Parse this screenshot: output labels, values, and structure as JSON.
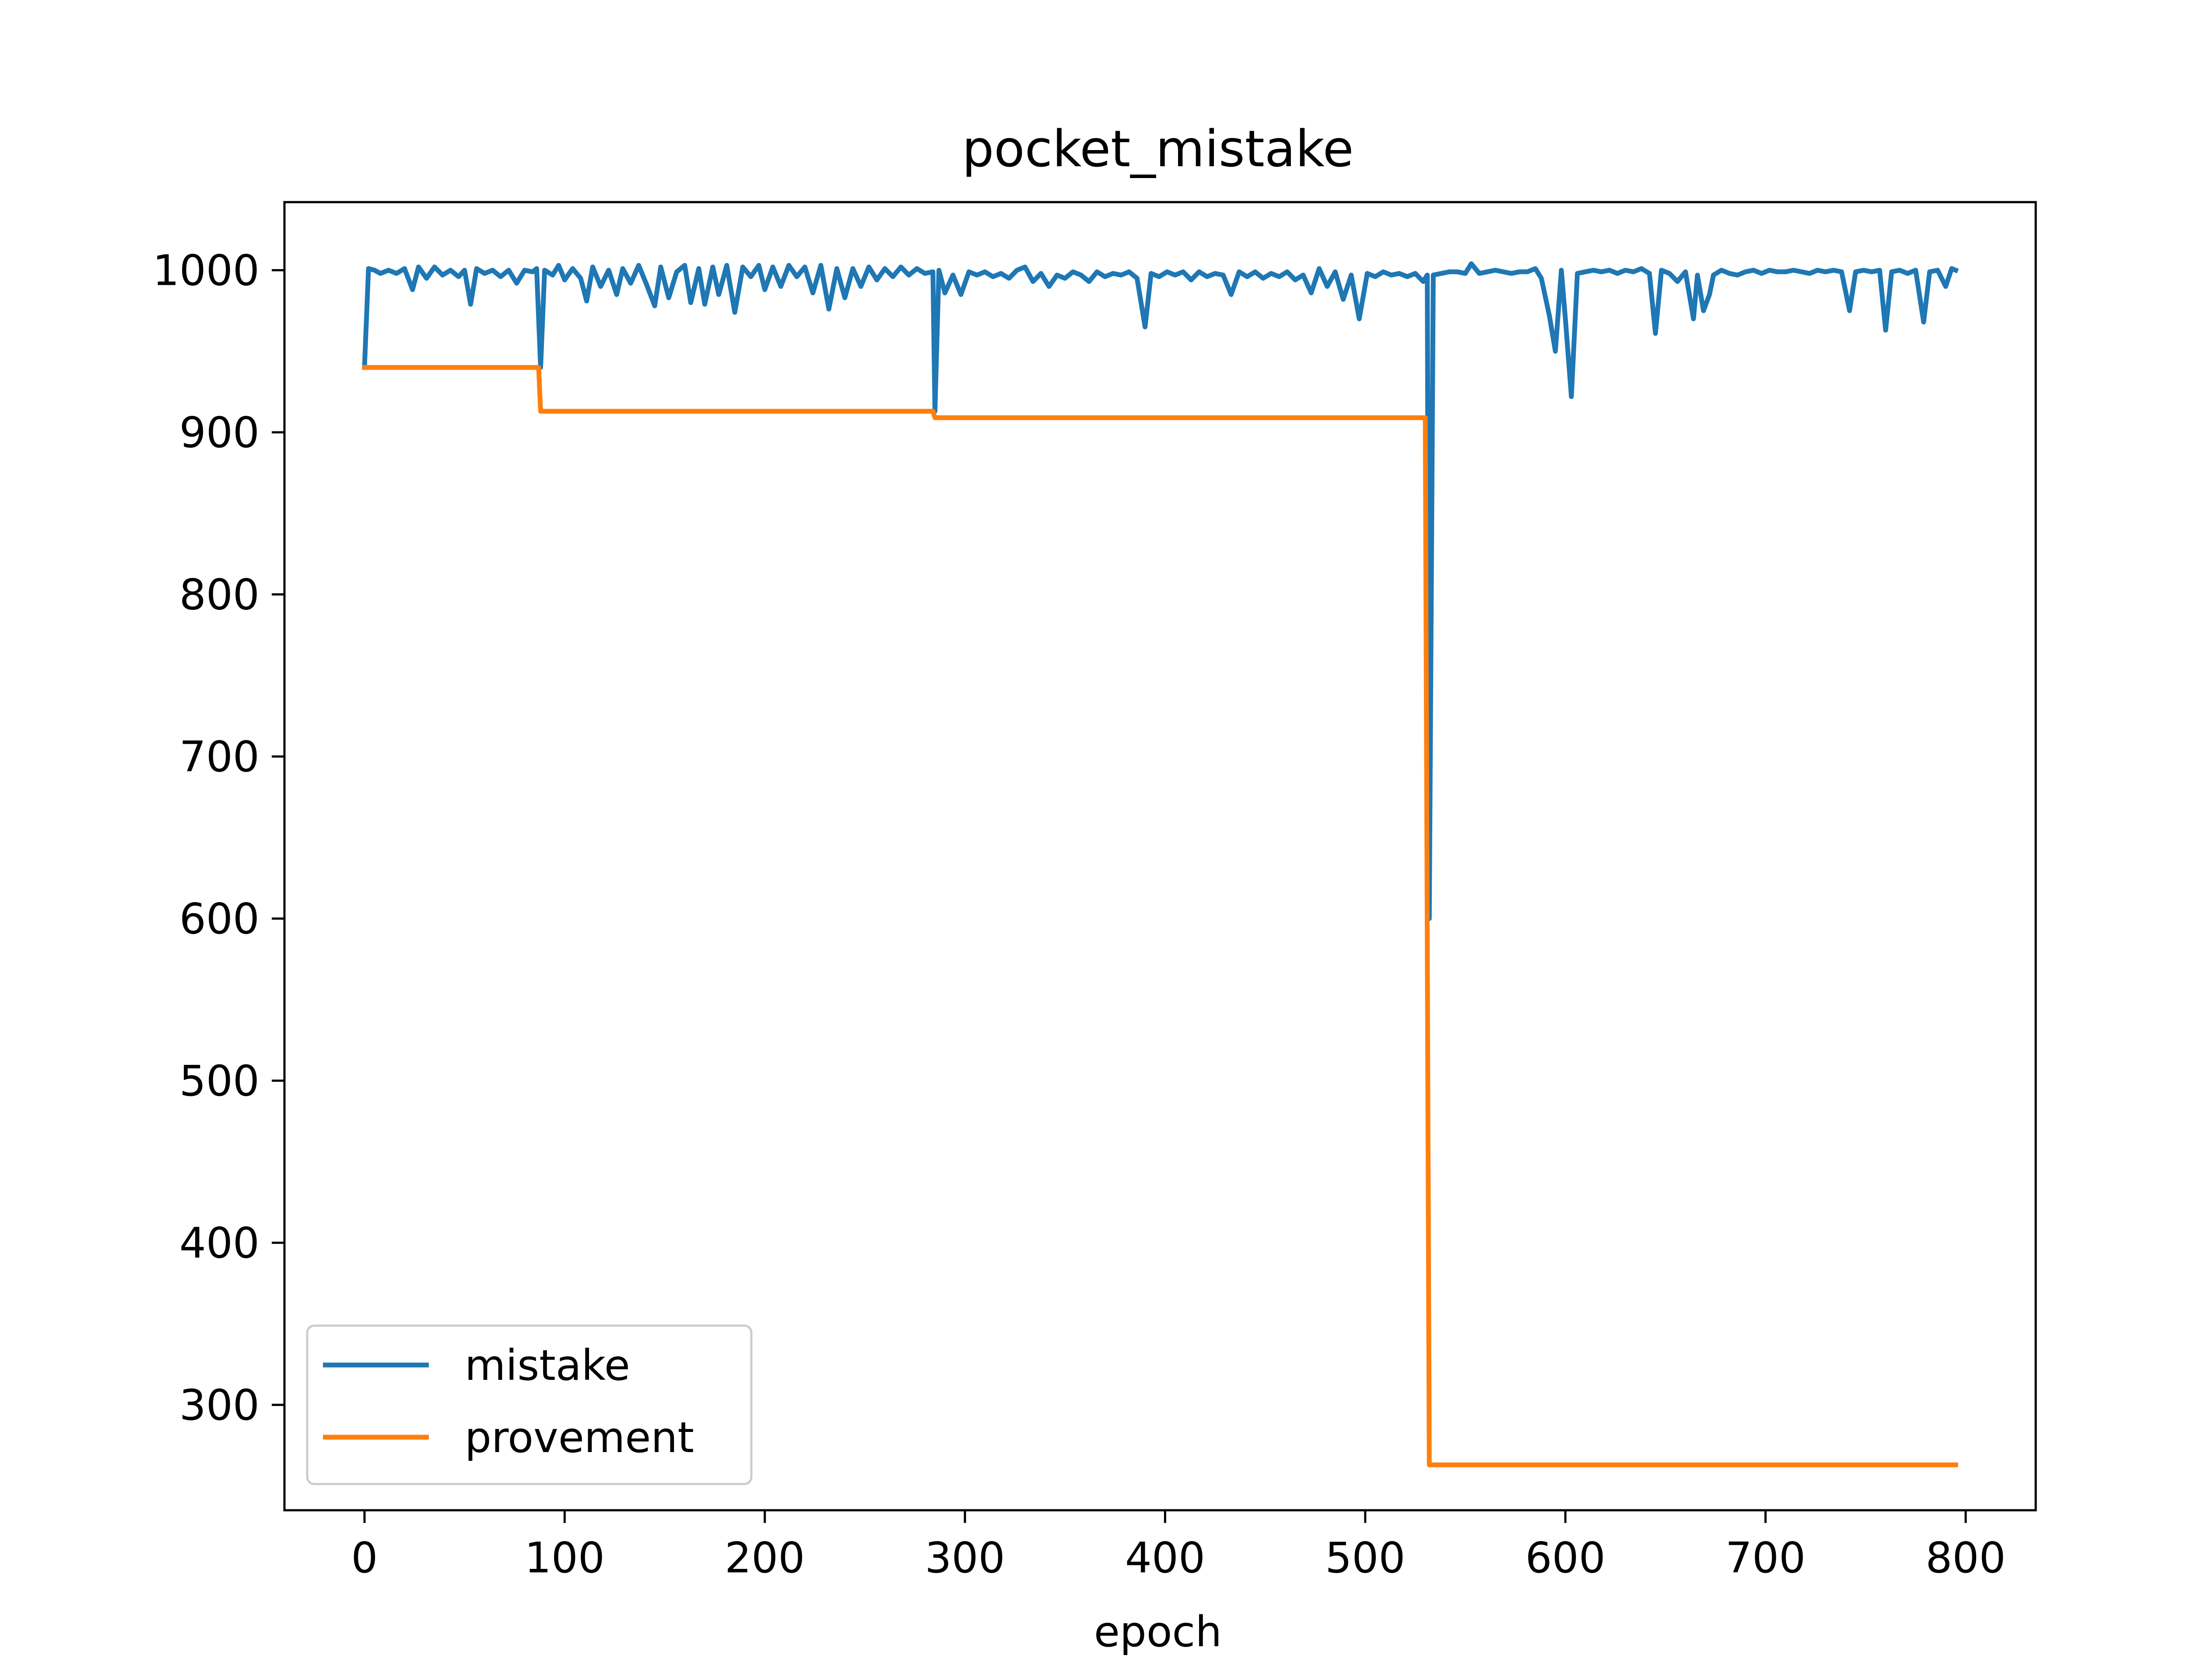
{
  "chart_data": {
    "type": "line",
    "title": "pocket_mistake",
    "xlabel": "epoch",
    "ylabel": "",
    "xlim": [
      -40,
      835
    ],
    "ylim": [
      235,
      1042
    ],
    "xticks": [
      0,
      100,
      200,
      300,
      400,
      500,
      600,
      700,
      800
    ],
    "yticks": [
      300,
      400,
      500,
      600,
      700,
      800,
      900,
      1000
    ],
    "grid": false,
    "legend": {
      "position": "lower-left"
    },
    "series": [
      {
        "name": "mistake",
        "color": "#1f77b4",
        "points": [
          [
            0,
            940
          ],
          [
            2,
            1001
          ],
          [
            5,
            1000
          ],
          [
            8,
            998
          ],
          [
            12,
            1000
          ],
          [
            16,
            998
          ],
          [
            20,
            1001
          ],
          [
            24,
            988
          ],
          [
            27,
            1002
          ],
          [
            31,
            995
          ],
          [
            35,
            1002
          ],
          [
            39,
            997
          ],
          [
            43,
            1000
          ],
          [
            47,
            996
          ],
          [
            50,
            1000
          ],
          [
            53,
            979
          ],
          [
            56,
            1001
          ],
          [
            60,
            998
          ],
          [
            64,
            1000
          ],
          [
            68,
            996
          ],
          [
            72,
            1000
          ],
          [
            76,
            992
          ],
          [
            80,
            1000
          ],
          [
            84,
            999
          ],
          [
            86,
            1001
          ],
          [
            88,
            940
          ],
          [
            90,
            1000
          ],
          [
            94,
            997
          ],
          [
            97,
            1003
          ],
          [
            100,
            994
          ],
          [
            104,
            1001
          ],
          [
            108,
            995
          ],
          [
            111,
            981
          ],
          [
            114,
            1002
          ],
          [
            118,
            990
          ],
          [
            122,
            1000
          ],
          [
            126,
            985
          ],
          [
            129,
            1001
          ],
          [
            133,
            992
          ],
          [
            137,
            1003
          ],
          [
            141,
            991
          ],
          [
            145,
            978
          ],
          [
            148,
            1002
          ],
          [
            152,
            983
          ],
          [
            156,
            999
          ],
          [
            160,
            1003
          ],
          [
            163,
            980
          ],
          [
            167,
            1001
          ],
          [
            170,
            979
          ],
          [
            174,
            1002
          ],
          [
            177,
            985
          ],
          [
            181,
            1003
          ],
          [
            185,
            974
          ],
          [
            189,
            1002
          ],
          [
            193,
            996
          ],
          [
            197,
            1003
          ],
          [
            200,
            988
          ],
          [
            204,
            1002
          ],
          [
            208,
            990
          ],
          [
            212,
            1003
          ],
          [
            216,
            996
          ],
          [
            220,
            1002
          ],
          [
            224,
            986
          ],
          [
            228,
            1003
          ],
          [
            232,
            976
          ],
          [
            236,
            1001
          ],
          [
            240,
            983
          ],
          [
            244,
            1001
          ],
          [
            248,
            990
          ],
          [
            252,
            1002
          ],
          [
            256,
            994
          ],
          [
            260,
            1001
          ],
          [
            264,
            996
          ],
          [
            268,
            1002
          ],
          [
            272,
            997
          ],
          [
            276,
            1001
          ],
          [
            280,
            998
          ],
          [
            284,
            999
          ],
          [
            285,
            913
          ],
          [
            287,
            1000
          ],
          [
            290,
            986
          ],
          [
            294,
            997
          ],
          [
            298,
            985
          ],
          [
            302,
            999
          ],
          [
            306,
            997
          ],
          [
            310,
            999
          ],
          [
            314,
            996
          ],
          [
            318,
            998
          ],
          [
            322,
            995
          ],
          [
            326,
            1000
          ],
          [
            330,
            1002
          ],
          [
            334,
            993
          ],
          [
            338,
            998
          ],
          [
            342,
            990
          ],
          [
            346,
            997
          ],
          [
            350,
            995
          ],
          [
            354,
            999
          ],
          [
            358,
            997
          ],
          [
            362,
            993
          ],
          [
            366,
            999
          ],
          [
            370,
            996
          ],
          [
            374,
            998
          ],
          [
            378,
            997
          ],
          [
            382,
            999
          ],
          [
            386,
            995
          ],
          [
            390,
            965
          ],
          [
            393,
            998
          ],
          [
            397,
            996
          ],
          [
            401,
            999
          ],
          [
            405,
            997
          ],
          [
            409,
            999
          ],
          [
            413,
            994
          ],
          [
            417,
            999
          ],
          [
            421,
            996
          ],
          [
            425,
            998
          ],
          [
            429,
            997
          ],
          [
            433,
            985
          ],
          [
            437,
            999
          ],
          [
            441,
            996
          ],
          [
            445,
            999
          ],
          [
            449,
            995
          ],
          [
            453,
            998
          ],
          [
            457,
            996
          ],
          [
            461,
            999
          ],
          [
            465,
            994
          ],
          [
            469,
            997
          ],
          [
            473,
            986
          ],
          [
            477,
            1001
          ],
          [
            481,
            990
          ],
          [
            485,
            999
          ],
          [
            489,
            982
          ],
          [
            493,
            997
          ],
          [
            497,
            970
          ],
          [
            501,
            998
          ],
          [
            505,
            996
          ],
          [
            509,
            999
          ],
          [
            513,
            997
          ],
          [
            517,
            998
          ],
          [
            521,
            996
          ],
          [
            525,
            998
          ],
          [
            529,
            993
          ],
          [
            531,
            997
          ],
          [
            532,
            600
          ],
          [
            534,
            997
          ],
          [
            538,
            998
          ],
          [
            542,
            999
          ],
          [
            546,
            999
          ],
          [
            550,
            998
          ],
          [
            553,
            1004
          ],
          [
            557,
            998
          ],
          [
            561,
            999
          ],
          [
            565,
            1000
          ],
          [
            569,
            999
          ],
          [
            573,
            998
          ],
          [
            577,
            999
          ],
          [
            581,
            999
          ],
          [
            585,
            1001
          ],
          [
            588,
            995
          ],
          [
            592,
            972
          ],
          [
            595,
            950
          ],
          [
            598,
            1000
          ],
          [
            600,
            970
          ],
          [
            603,
            922
          ],
          [
            606,
            998
          ],
          [
            610,
            999
          ],
          [
            614,
            1000
          ],
          [
            618,
            999
          ],
          [
            622,
            1000
          ],
          [
            626,
            998
          ],
          [
            630,
            1000
          ],
          [
            634,
            999
          ],
          [
            638,
            1001
          ],
          [
            642,
            998
          ],
          [
            645,
            961
          ],
          [
            648,
            1000
          ],
          [
            652,
            998
          ],
          [
            656,
            993
          ],
          [
            660,
            999
          ],
          [
            664,
            970
          ],
          [
            666,
            997
          ],
          [
            669,
            975
          ],
          [
            672,
            985
          ],
          [
            674,
            997
          ],
          [
            678,
            1000
          ],
          [
            682,
            998
          ],
          [
            686,
            997
          ],
          [
            690,
            999
          ],
          [
            694,
            1000
          ],
          [
            698,
            998
          ],
          [
            702,
            1000
          ],
          [
            706,
            999
          ],
          [
            710,
            999
          ],
          [
            714,
            1000
          ],
          [
            718,
            999
          ],
          [
            722,
            998
          ],
          [
            726,
            1000
          ],
          [
            730,
            999
          ],
          [
            734,
            1000
          ],
          [
            738,
            999
          ],
          [
            742,
            975
          ],
          [
            745,
            999
          ],
          [
            749,
            1000
          ],
          [
            753,
            999
          ],
          [
            757,
            1000
          ],
          [
            760,
            963
          ],
          [
            763,
            999
          ],
          [
            767,
            1000
          ],
          [
            771,
            998
          ],
          [
            775,
            1000
          ],
          [
            779,
            968
          ],
          [
            782,
            999
          ],
          [
            786,
            1000
          ],
          [
            790,
            990
          ],
          [
            793,
            1001
          ],
          [
            795,
            1000
          ]
        ]
      },
      {
        "name": "provement",
        "color": "#ff7f0e",
        "points": [
          [
            0,
            940
          ],
          [
            87,
            940
          ],
          [
            88,
            913
          ],
          [
            284,
            913
          ],
          [
            285,
            909
          ],
          [
            530,
            909
          ],
          [
            532,
            263
          ],
          [
            795,
            263
          ]
        ]
      }
    ]
  }
}
